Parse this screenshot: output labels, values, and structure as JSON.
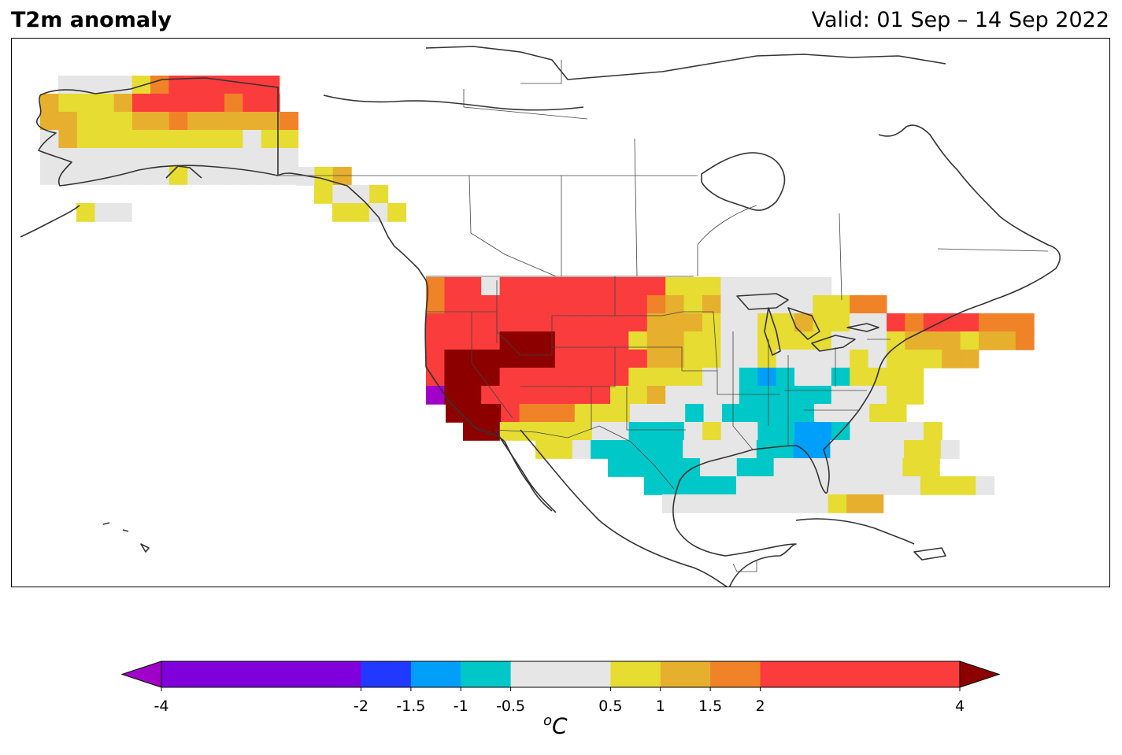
{
  "header": {
    "title": "T2m anomaly",
    "valid": "Valid: 01 Sep – 14 Sep 2022"
  },
  "colorbar": {
    "tick_labels": [
      "-4",
      "-2",
      "-1.5",
      "-1",
      "-0.5",
      "0.5",
      "1",
      "1.5",
      "2",
      "4"
    ],
    "bins": [
      {
        "from": -4,
        "to": -2,
        "color": "#8000dc"
      },
      {
        "from": -2,
        "to": -1.5,
        "color": "#2139ff"
      },
      {
        "from": -1.5,
        "to": -1,
        "color": "#009ffa"
      },
      {
        "from": -1,
        "to": -0.5,
        "color": "#00c8c8"
      },
      {
        "from": -0.5,
        "to": 0.5,
        "color": "#e6e6e6"
      },
      {
        "from": 0.5,
        "to": 1,
        "color": "#e6dc32"
      },
      {
        "from": 1,
        "to": 1.5,
        "color": "#e6af2d"
      },
      {
        "from": 1.5,
        "to": 2,
        "color": "#f08228"
      },
      {
        "from": 2,
        "to": 4,
        "color": "#fa3c3c"
      }
    ],
    "under_color": "#a000c8",
    "over_color": "#8c0000",
    "unit_main": "C",
    "unit_sup": "o"
  },
  "map": {
    "projection": "North America, lat-lon",
    "region": "Alaska, western Canada coast, contiguous United States",
    "land_color": "#ffffff",
    "coastline_color": "#333333",
    "regional_anomalies": [
      {
        "region": "Southwest US (CA/NV/AZ)",
        "bin": ">4"
      },
      {
        "region": "Southern California coast",
        "bin": "<-4"
      },
      {
        "region": "Northern Rockies / Plains",
        "bin": "2 to 4"
      },
      {
        "region": "Northern Alaska",
        "bin": "2 to 4"
      },
      {
        "region": "South-central US / Gulf coast",
        "bin": "-1 to -0.5"
      },
      {
        "region": "Louisiana / Mississippi",
        "bin": "-1.5 to -1"
      },
      {
        "region": "Northeast US",
        "bin": "1 to 2"
      },
      {
        "region": "Southeast US",
        "bin": "-0.5 to 0.5"
      }
    ]
  }
}
